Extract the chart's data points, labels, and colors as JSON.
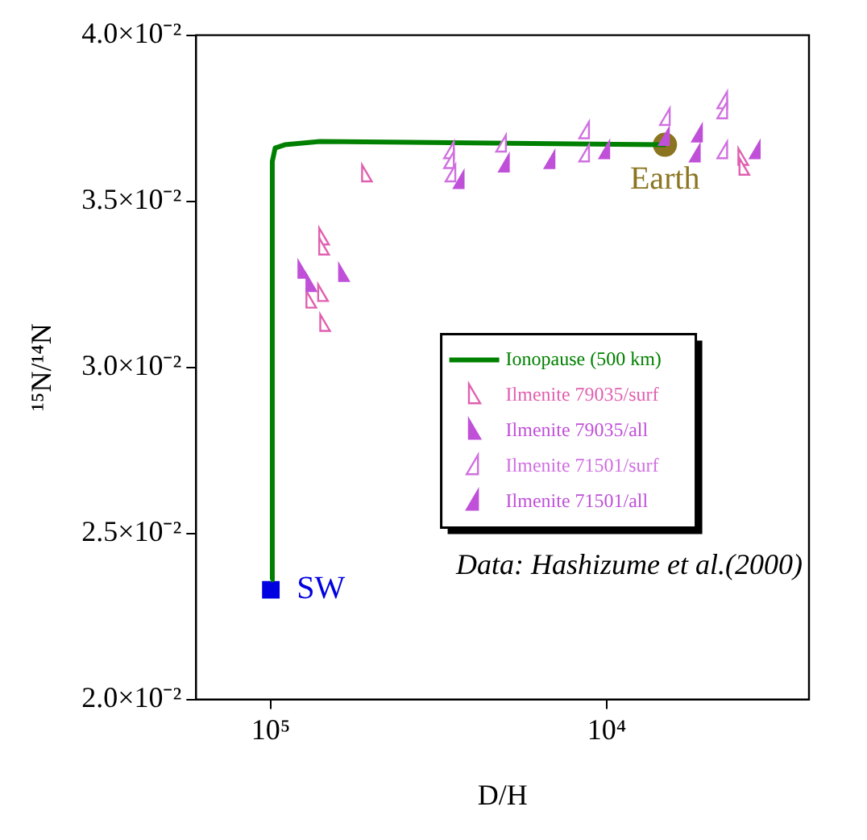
{
  "chart_data": {
    "type": "scatter",
    "xlabel": "D/H",
    "ylabel": "¹⁵N/¹⁴N",
    "log": "x",
    "xlim": [
      167000,
      2500
    ],
    "xticks": [
      {
        "value": 100000,
        "label": "10⁵"
      },
      {
        "value": 10000,
        "label": "10⁴"
      }
    ],
    "ylim": [
      0.02,
      0.04
    ],
    "yticks": [
      {
        "value": 0.02,
        "label": "2.0×10⁻²"
      },
      {
        "value": 0.025,
        "label": "2.5×10⁻²"
      },
      {
        "value": 0.03,
        "label": "3.0×10⁻²"
      },
      {
        "value": 0.035,
        "label": "3.5×10⁻²"
      },
      {
        "value": 0.04,
        "label": "4.0×10⁻²"
      }
    ],
    "grid": false,
    "legend": "right",
    "marker": "triangle",
    "series": [
      {
        "name": "Ionopause (500 km)",
        "type": "line",
        "color": "#008000",
        "marker": "none",
        "x": [
          100000,
          99000,
          97100,
          90900,
          71400,
          6670
        ],
        "values": [
          0.0236,
          0.0362,
          0.0366,
          0.0367,
          0.0368,
          0.0367
        ]
      },
      {
        "name": "Ilmenite 79035/surf",
        "color": "#e060b0",
        "x": [
          52100,
          69900,
          69900,
          70400,
          76300,
          69400,
          3950,
          3920
        ],
        "values": [
          0.0358,
          0.0339,
          0.0336,
          0.0322,
          0.032,
          0.0313,
          0.0363,
          0.036
        ]
      },
      {
        "name": "Ilmenite 79035/all",
        "color": "#c050d8",
        "x": [
          80600,
          76300,
          61000
        ],
        "values": [
          0.0329,
          0.0325,
          0.0328
        ]
      },
      {
        "name": "Ilmenite 71501/surf",
        "color": "#d070e0",
        "x": [
          29300,
          29300,
          29000,
          20500,
          11600,
          11600,
          6670,
          4500,
          4500,
          4500
        ],
        "values": [
          0.0365,
          0.0362,
          0.0358,
          0.0367,
          0.0371,
          0.0364,
          0.0375,
          0.038,
          0.0377,
          0.0365
        ]
      },
      {
        "name": "Ilmenite 71501/all",
        "color": "#c050d8",
        "x": [
          27400,
          20100,
          14700,
          10100,
          6710,
          5350,
          5430,
          3600
        ],
        "values": [
          0.0356,
          0.0361,
          0.0362,
          0.0365,
          0.0369,
          0.037,
          0.0364,
          0.0365
        ]
      },
      {
        "color": "#0000e0",
        "marker": "square",
        "x": [
          100000
        ],
        "values": [
          0.0233
        ]
      },
      {
        "color": "#8b7520",
        "marker": "circle",
        "x": [
          6710
        ],
        "values": [
          0.0367
        ]
      }
    ],
    "annotations": [
      {
        "text": "SW",
        "x": 100000,
        "y": 0.0233
      },
      {
        "text": "Earth",
        "x": 6710,
        "y": 0.0367
      },
      "Data: Hashizume et al.(2000)"
    ]
  }
}
